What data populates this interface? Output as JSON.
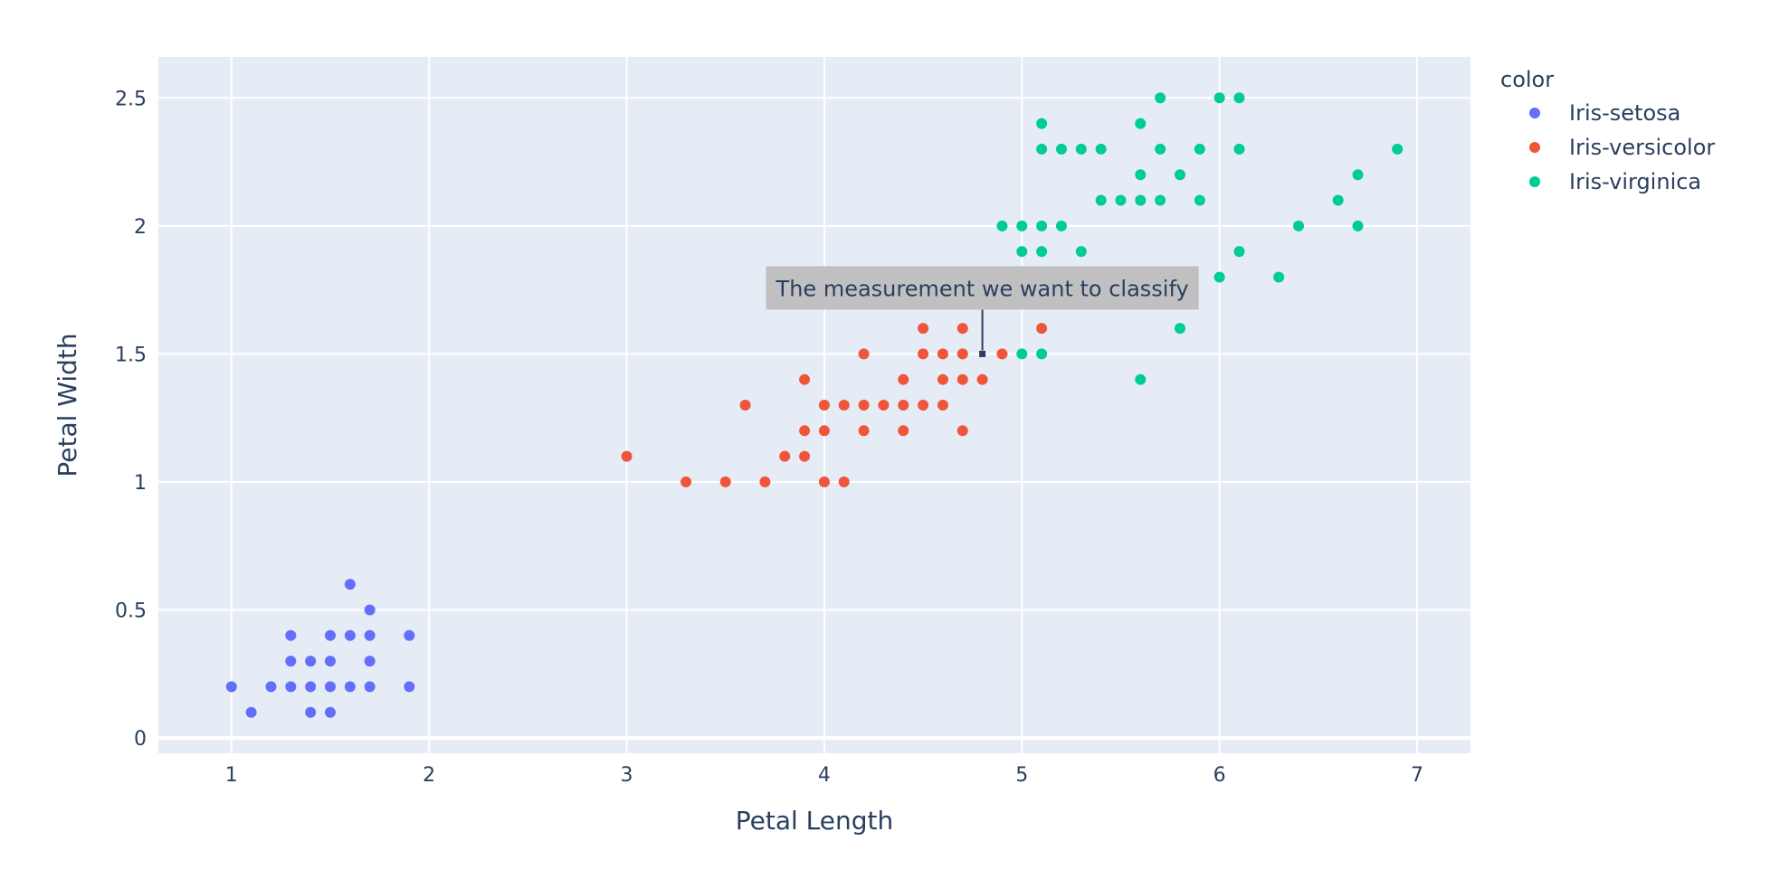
{
  "chart_data": {
    "type": "scatter",
    "title": "",
    "xlabel": "Petal Length",
    "ylabel": "Petal Width",
    "xlim": [
      0.63,
      7.27
    ],
    "ylim": [
      -0.06,
      2.66
    ],
    "x_ticks": [
      1,
      2,
      3,
      4,
      5,
      6,
      7
    ],
    "y_ticks": [
      0,
      0.5,
      1,
      1.5,
      2,
      2.5
    ],
    "x_tick_labels": [
      "1",
      "2",
      "3",
      "4",
      "5",
      "6",
      "7"
    ],
    "y_tick_labels": [
      "0",
      "0.5",
      "1",
      "1.5",
      "2",
      "2.5"
    ],
    "grid": true,
    "legend": {
      "title": "color",
      "placement": "top-right, outside plot"
    },
    "series": [
      {
        "name": "Iris-setosa",
        "color": "#636efa",
        "points": [
          [
            1.0,
            0.2
          ],
          [
            1.1,
            0.1
          ],
          [
            1.2,
            0.2
          ],
          [
            1.3,
            0.2
          ],
          [
            1.3,
            0.3
          ],
          [
            1.3,
            0.4
          ],
          [
            1.4,
            0.1
          ],
          [
            1.4,
            0.2
          ],
          [
            1.4,
            0.3
          ],
          [
            1.5,
            0.1
          ],
          [
            1.5,
            0.2
          ],
          [
            1.5,
            0.3
          ],
          [
            1.5,
            0.4
          ],
          [
            1.6,
            0.2
          ],
          [
            1.6,
            0.4
          ],
          [
            1.6,
            0.6
          ],
          [
            1.7,
            0.2
          ],
          [
            1.7,
            0.3
          ],
          [
            1.7,
            0.4
          ],
          [
            1.7,
            0.5
          ],
          [
            1.9,
            0.2
          ],
          [
            1.9,
            0.4
          ]
        ]
      },
      {
        "name": "Iris-versicolor",
        "color": "#ef553b",
        "points": [
          [
            3.0,
            1.1
          ],
          [
            3.3,
            1.0
          ],
          [
            3.5,
            1.0
          ],
          [
            3.6,
            1.3
          ],
          [
            3.7,
            1.0
          ],
          [
            3.8,
            1.1
          ],
          [
            3.9,
            1.1
          ],
          [
            3.9,
            1.2
          ],
          [
            3.9,
            1.4
          ],
          [
            4.0,
            1.0
          ],
          [
            4.0,
            1.2
          ],
          [
            4.0,
            1.3
          ],
          [
            4.1,
            1.0
          ],
          [
            4.1,
            1.3
          ],
          [
            4.2,
            1.2
          ],
          [
            4.2,
            1.3
          ],
          [
            4.2,
            1.5
          ],
          [
            4.3,
            1.3
          ],
          [
            4.4,
            1.2
          ],
          [
            4.4,
            1.3
          ],
          [
            4.4,
            1.4
          ],
          [
            4.5,
            1.3
          ],
          [
            4.5,
            1.5
          ],
          [
            4.5,
            1.6
          ],
          [
            4.6,
            1.3
          ],
          [
            4.6,
            1.4
          ],
          [
            4.6,
            1.5
          ],
          [
            4.7,
            1.2
          ],
          [
            4.7,
            1.4
          ],
          [
            4.7,
            1.5
          ],
          [
            4.7,
            1.6
          ],
          [
            4.8,
            1.4
          ],
          [
            4.8,
            1.8
          ],
          [
            4.9,
            1.5
          ],
          [
            5.0,
            1.7
          ],
          [
            5.1,
            1.6
          ]
        ]
      },
      {
        "name": "Iris-virginica",
        "color": "#00cc96",
        "points": [
          [
            4.5,
            1.7
          ],
          [
            4.8,
            1.8
          ],
          [
            4.9,
            1.8
          ],
          [
            4.9,
            2.0
          ],
          [
            5.0,
            1.5
          ],
          [
            5.0,
            1.9
          ],
          [
            5.0,
            2.0
          ],
          [
            5.1,
            1.5
          ],
          [
            5.1,
            1.9
          ],
          [
            5.1,
            2.0
          ],
          [
            5.1,
            2.3
          ],
          [
            5.1,
            2.4
          ],
          [
            5.2,
            2.0
          ],
          [
            5.2,
            2.3
          ],
          [
            5.3,
            1.9
          ],
          [
            5.3,
            2.3
          ],
          [
            5.4,
            2.1
          ],
          [
            5.4,
            2.3
          ],
          [
            5.5,
            2.1
          ],
          [
            5.6,
            1.4
          ],
          [
            5.6,
            2.1
          ],
          [
            5.6,
            2.2
          ],
          [
            5.6,
            2.4
          ],
          [
            5.7,
            2.1
          ],
          [
            5.7,
            2.3
          ],
          [
            5.7,
            2.5
          ],
          [
            5.8,
            1.6
          ],
          [
            5.8,
            2.2
          ],
          [
            5.9,
            2.1
          ],
          [
            5.9,
            2.3
          ],
          [
            6.0,
            1.8
          ],
          [
            6.0,
            2.5
          ],
          [
            6.1,
            1.9
          ],
          [
            6.1,
            2.3
          ],
          [
            6.1,
            2.5
          ],
          [
            6.3,
            1.8
          ],
          [
            6.4,
            2.0
          ],
          [
            6.6,
            2.1
          ],
          [
            6.7,
            2.0
          ],
          [
            6.7,
            2.2
          ],
          [
            6.9,
            2.3
          ]
        ]
      }
    ],
    "annotation": {
      "text": "The measurement we want to classify",
      "x": 4.8,
      "y": 1.5,
      "marker_color": "#2a3f5f",
      "box_color": "#c0c0c0"
    }
  }
}
